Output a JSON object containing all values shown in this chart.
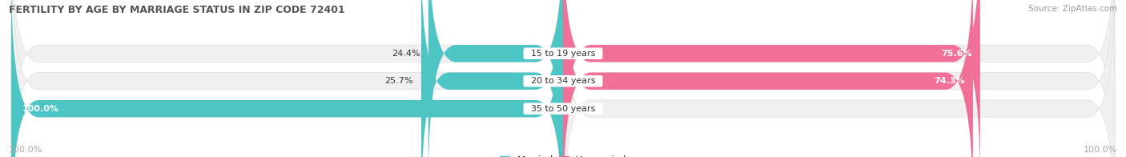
{
  "title": "FERTILITY BY AGE BY MARRIAGE STATUS IN ZIP CODE 72401",
  "source": "Source: ZipAtlas.com",
  "categories": [
    "15 to 19 years",
    "20 to 34 years",
    "35 to 50 years"
  ],
  "married_pct": [
    24.4,
    25.7,
    100.0
  ],
  "unmarried_pct": [
    75.6,
    74.3,
    0.0
  ],
  "married_color": "#4ec5c5",
  "unmarried_color": "#f07098",
  "bar_bg_color": "#f0f0f0",
  "bar_bg_stroke": "#e0e0e0",
  "bg_color": "#ffffff",
  "title_fontsize": 9,
  "source_fontsize": 7.5,
  "label_fontsize": 8,
  "category_fontsize": 8,
  "legend_fontsize": 8.5,
  "axis_label_left": "100.0%",
  "axis_label_right": "100.0%"
}
